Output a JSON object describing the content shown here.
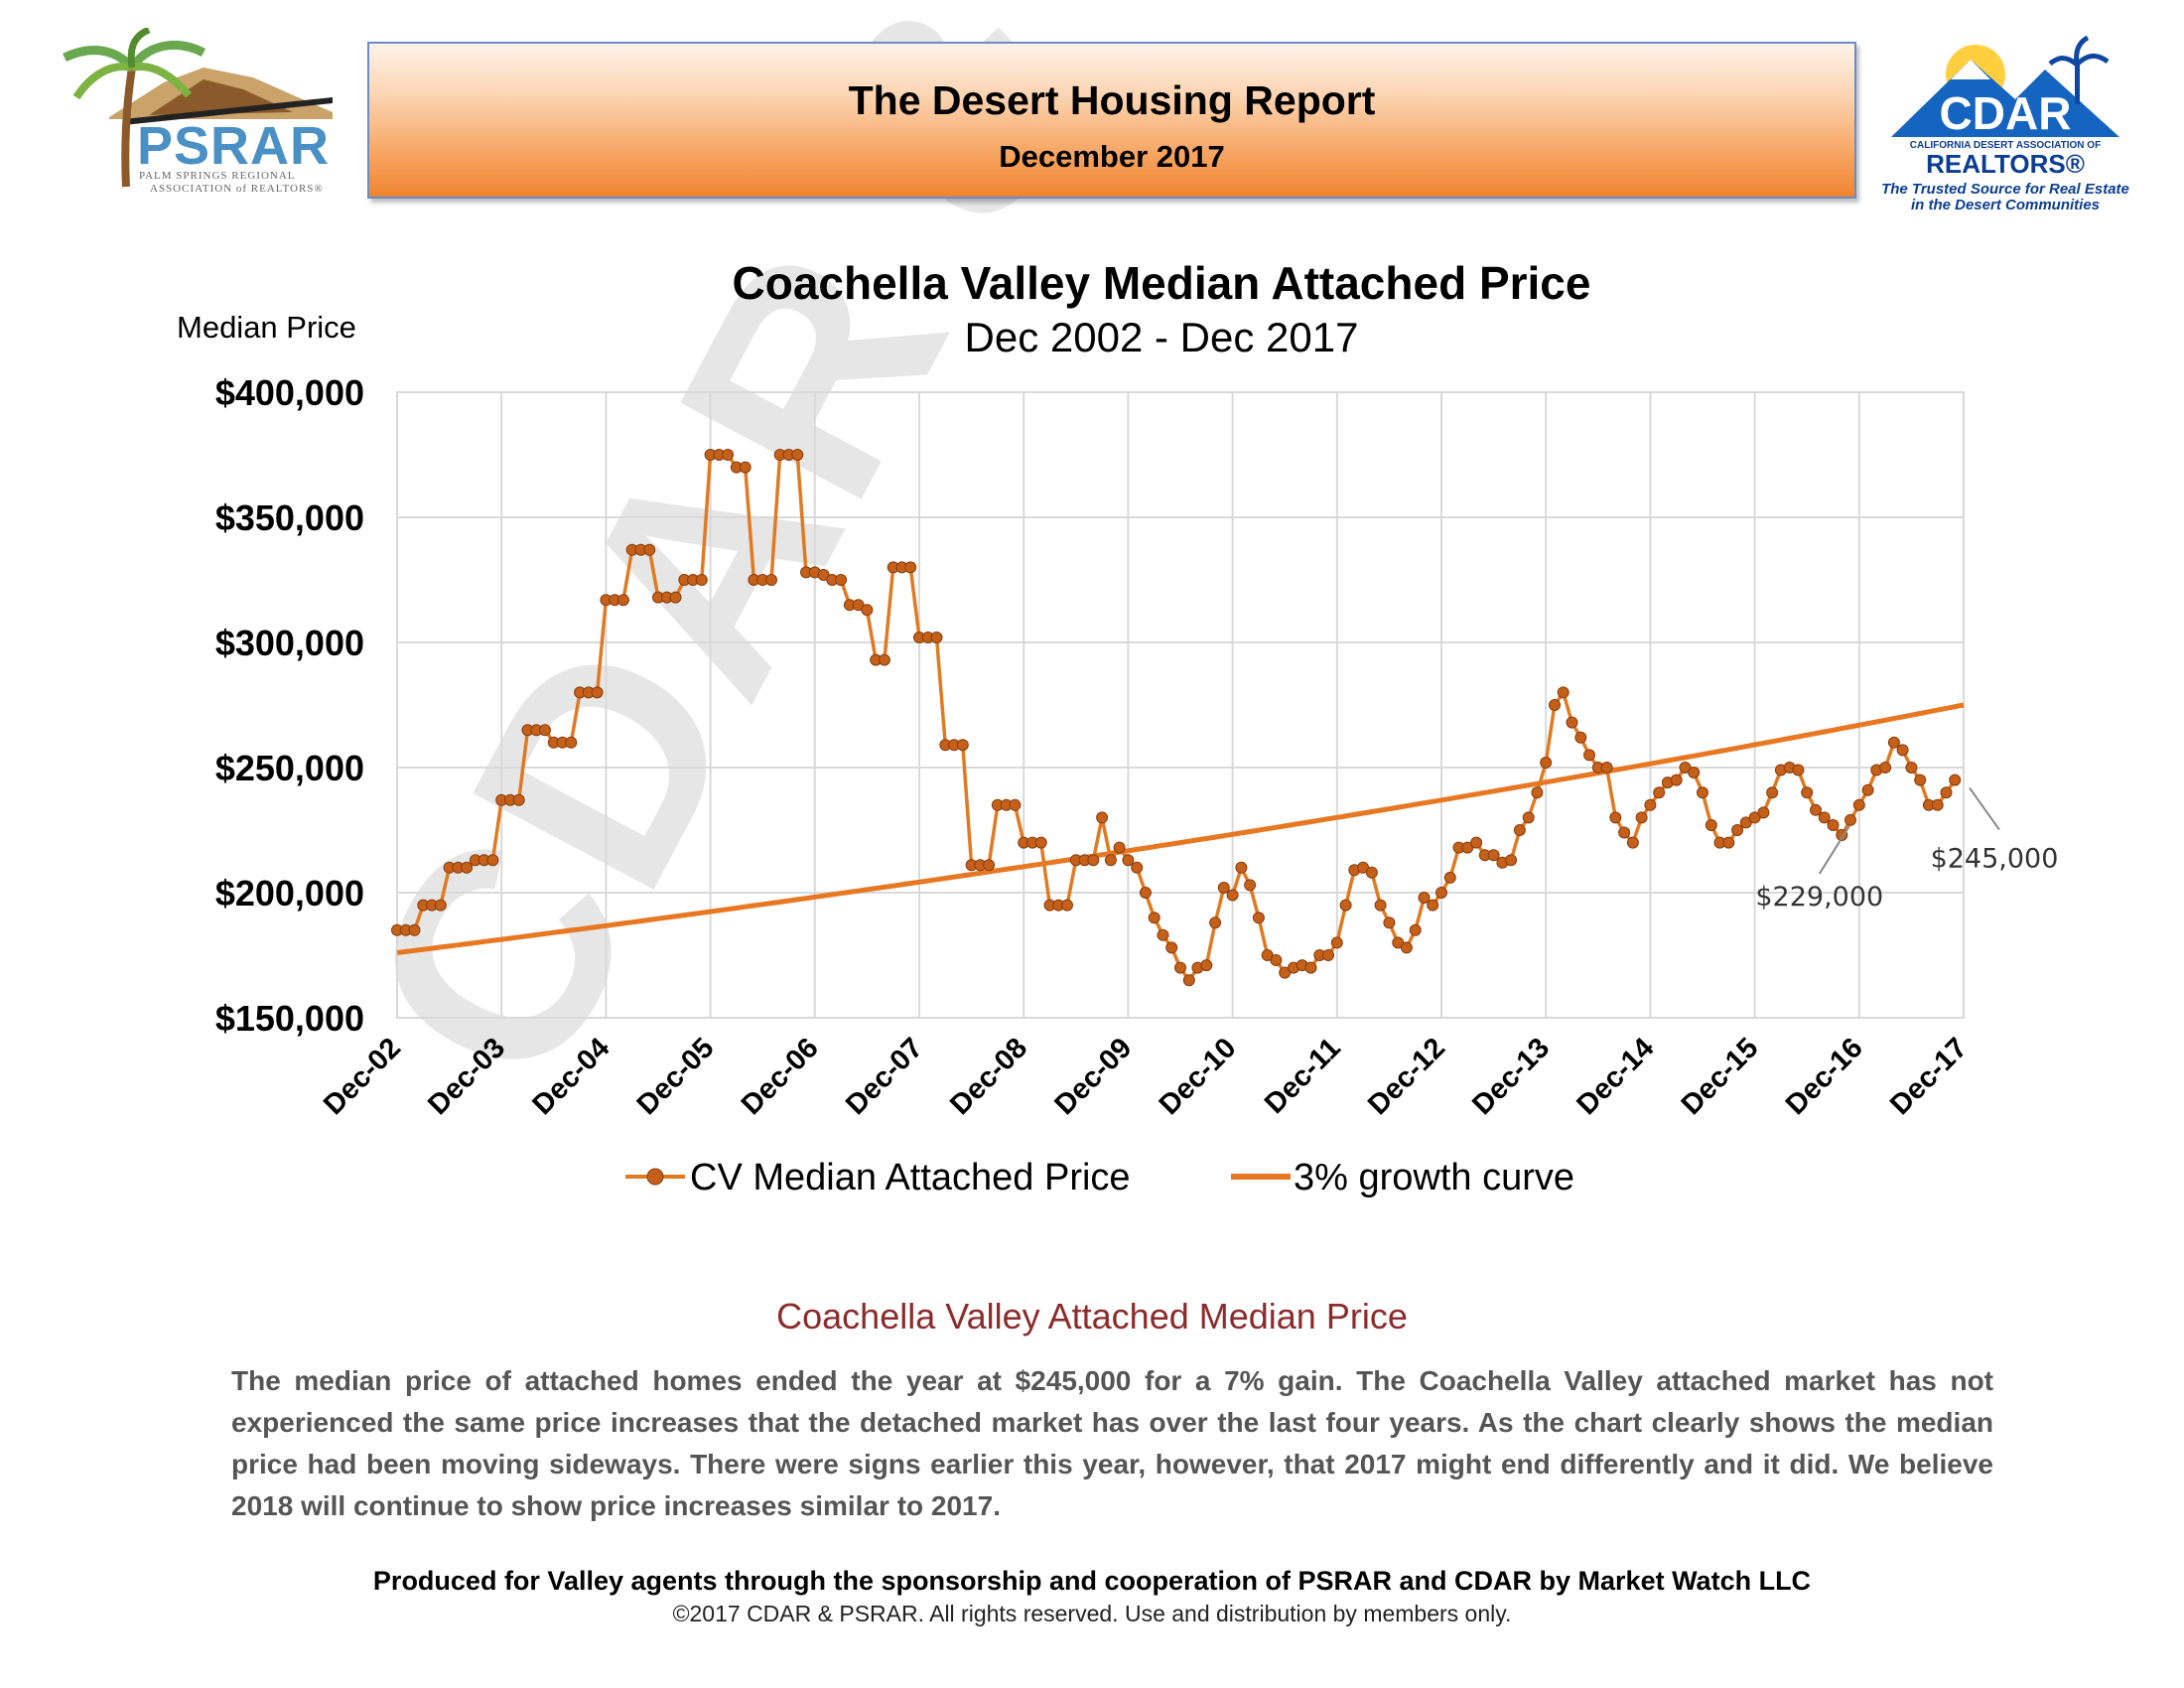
{
  "header": {
    "title": "The Desert Housing Report",
    "date": "December 2017"
  },
  "logos": {
    "psrar": {
      "name": "PSRAR",
      "tagline_1": "PALM SPRINGS REGIONAL",
      "tagline_2": "ASSOCIATION of REALTORS®"
    },
    "cdar": {
      "name": "CDAR",
      "org_line": "CALIFORNIA DESERT ASSOCIATION OF",
      "realtors": "REALTORS®",
      "tagline_1": "The Trusted Source for Real Estate",
      "tagline_2": "in the Desert Communities"
    }
  },
  "watermark": "CDAR & PSRAR",
  "chart_data": {
    "type": "line",
    "title": "Coachella Valley Median Attached Price",
    "subtitle": "Dec 2002 - Dec 2017",
    "ylabel": "Median Price",
    "ylim": [
      150000,
      400000
    ],
    "y_ticks": [
      "$150,000",
      "$200,000",
      "$250,000",
      "$300,000",
      "$350,000",
      "$400,000"
    ],
    "y_tick_values": [
      150000,
      200000,
      250000,
      300000,
      350000,
      400000
    ],
    "x_ticks": [
      "Dec-02",
      "Dec-03",
      "Dec-04",
      "Dec-05",
      "Dec-06",
      "Dec-07",
      "Dec-08",
      "Dec-09",
      "Dec-10",
      "Dec-11",
      "Dec-12",
      "Dec-13",
      "Dec-14",
      "Dec-15",
      "Dec-16",
      "Dec-17"
    ],
    "grid": true,
    "legend_position": "bottom",
    "colors": {
      "median": "#e07a22",
      "marker": "#c4601a",
      "growth": "#e87722",
      "grid": "#d9d9d9"
    },
    "series": [
      {
        "name": "CV Median Attached Price",
        "marker": "circle",
        "start": "Dec-02",
        "frequency": "monthly",
        "values": [
          185000,
          185000,
          185000,
          195000,
          195000,
          195000,
          210000,
          210000,
          210000,
          213000,
          213000,
          213000,
          237000,
          237000,
          237000,
          265000,
          265000,
          265000,
          260000,
          260000,
          260000,
          280000,
          280000,
          280000,
          317000,
          317000,
          317000,
          337000,
          337000,
          337000,
          318000,
          318000,
          318000,
          325000,
          325000,
          325000,
          375000,
          375000,
          375000,
          370000,
          370000,
          325000,
          325000,
          325000,
          375000,
          375000,
          375000,
          328000,
          328000,
          327000,
          325000,
          325000,
          315000,
          315000,
          313000,
          293000,
          293000,
          330000,
          330000,
          330000,
          302000,
          302000,
          302000,
          259000,
          259000,
          259000,
          211000,
          211000,
          211000,
          235000,
          235000,
          235000,
          220000,
          220000,
          220000,
          195000,
          195000,
          195000,
          213000,
          213000,
          213000,
          230000,
          213000,
          218000,
          213000,
          210000,
          200000,
          190000,
          183000,
          178000,
          170000,
          165000,
          170000,
          171000,
          188000,
          202000,
          199000,
          210000,
          203000,
          190000,
          175000,
          173000,
          168000,
          170000,
          171000,
          170000,
          175000,
          175000,
          180000,
          195000,
          209000,
          210000,
          208000,
          195000,
          188000,
          180000,
          178000,
          185000,
          198000,
          195000,
          200000,
          206000,
          218000,
          218000,
          220000,
          215000,
          215000,
          212000,
          213000,
          225000,
          230000,
          240000,
          252000,
          275000,
          280000,
          268000,
          262000,
          255000,
          250000,
          250000,
          230000,
          224000,
          220000,
          230000,
          235000,
          240000,
          244000,
          245000,
          250000,
          248000,
          240000,
          227000,
          220000,
          220000,
          225000,
          228000,
          230000,
          232000,
          240000,
          249000,
          250000,
          249000,
          240000,
          233000,
          230000,
          227000,
          223000,
          229000,
          235000,
          241000,
          249000,
          250000,
          260000,
          257000,
          250000,
          245000,
          235000,
          235000,
          240000,
          245000
        ]
      },
      {
        "name": "3% growth curve",
        "type": "curve",
        "start_value": 176000,
        "end_value": 275000,
        "annual_growth": 0.03
      }
    ],
    "annotations": [
      {
        "label": "$229,000",
        "x": "Dec-16",
        "value": 229000
      },
      {
        "label": "$245,000",
        "x": "Dec-17",
        "value": 245000
      }
    ]
  },
  "commentary": {
    "heading": "Coachella Valley Attached Median Price",
    "body": "The median price of attached homes ended the year at $245,000 for a 7% gain. The Coachella Valley attached market has not experienced the same price increases that the detached market has over the last four years. As the chart clearly shows the median price had been moving sideways. There were signs earlier this year, however, that 2017 might end differently and it did. We believe 2018 will continue to show price increases similar to 2017."
  },
  "footer": {
    "credit": "Produced for Valley agents through the sponsorship and cooperation of PSRAR and CDAR by Market Watch LLC",
    "copyright": "©2017 CDAR & PSRAR.  All rights reserved.  Use and distribution by members only."
  }
}
